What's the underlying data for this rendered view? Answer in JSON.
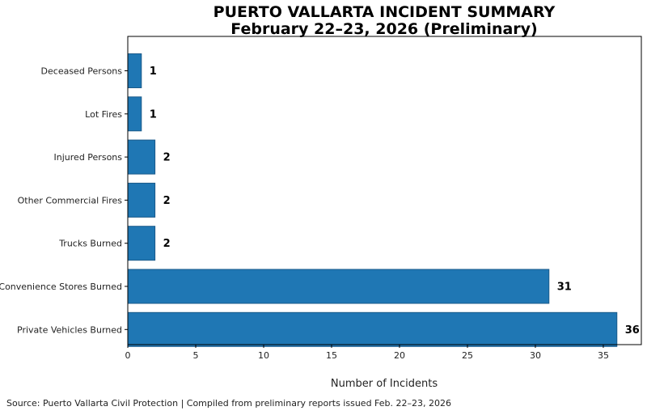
{
  "chart_data": {
    "type": "bar",
    "orientation": "horizontal",
    "title": [
      "PUERTO VALLARTA INCIDENT SUMMARY",
      "February 22–23, 2026 (Preliminary)"
    ],
    "xlabel": "Number of Incidents",
    "ylabel": "",
    "xlim": [
      0,
      37.8
    ],
    "xticks": [
      0,
      5,
      10,
      15,
      20,
      25,
      30,
      35
    ],
    "categories": [
      "Deceased Persons",
      "Lot Fires",
      "Injured Persons",
      "Other Commercial Fires",
      "Trucks Burned",
      "Convenience Stores Burned",
      "Private Vehicles Burned"
    ],
    "values": [
      1,
      1,
      2,
      2,
      2,
      31,
      36
    ],
    "data_labels": [
      "1",
      "1",
      "2",
      "2",
      "2",
      "31",
      "36"
    ],
    "grid": false,
    "legend": "none",
    "bar_color": "#1f77b4",
    "bar_edge_color": "#1a5a8a"
  },
  "footer": {
    "source": "Source: Puerto Vallarta Civil Protection | Compiled from preliminary reports issued Feb. 22–23, 2026"
  }
}
